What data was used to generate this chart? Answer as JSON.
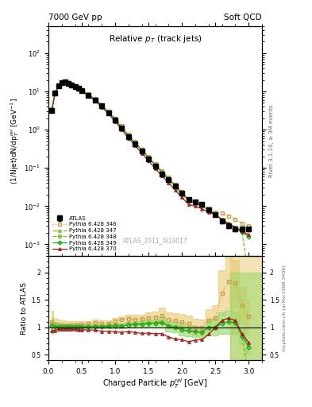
{
  "title_left": "7000 GeV pp",
  "title_right": "Soft QCD",
  "plot_title": "Relative $p_T$ (track jets)",
  "xlabel": "Charged Particle $p_T^{rel}$ [GeV]",
  "ylabel_main": "(1/Njet)dN/dp$_T^{rel}$ [GeV$^{-1}$]",
  "ylabel_ratio": "Ratio to ATLAS",
  "right_label_main": "Rivet 3.1.10, ≥ 3M events",
  "right_label_ratio": "mcplots.cern.ch [arXiv:1306.3436]",
  "watermark": "ATLAS_2011_I919017",
  "atlas_x": [
    0.05,
    0.1,
    0.15,
    0.2,
    0.25,
    0.3,
    0.35,
    0.4,
    0.45,
    0.5,
    0.6,
    0.7,
    0.8,
    0.9,
    1.0,
    1.1,
    1.2,
    1.3,
    1.4,
    1.5,
    1.6,
    1.7,
    1.8,
    1.9,
    2.0,
    2.1,
    2.2,
    2.3,
    2.4,
    2.5,
    2.6,
    2.7,
    2.8,
    2.9,
    3.0
  ],
  "atlas_y": [
    3.2,
    9.0,
    14.0,
    17.0,
    17.5,
    16.5,
    15.0,
    13.5,
    12.0,
    10.5,
    8.0,
    6.0,
    4.2,
    2.8,
    1.8,
    1.1,
    0.65,
    0.42,
    0.27,
    0.17,
    0.11,
    0.07,
    0.05,
    0.033,
    0.022,
    0.015,
    0.013,
    0.011,
    0.008,
    0.006,
    0.004,
    0.003,
    0.0025,
    0.0025,
    0.0025
  ],
  "atlas_yerr": [
    0.3,
    0.5,
    0.7,
    0.8,
    0.8,
    0.7,
    0.6,
    0.5,
    0.4,
    0.3,
    0.2,
    0.15,
    0.1,
    0.07,
    0.05,
    0.03,
    0.02,
    0.015,
    0.01,
    0.007,
    0.005,
    0.004,
    0.003,
    0.002,
    0.0015,
    0.001,
    0.001,
    0.0008,
    0.0007,
    0.0006,
    0.0005,
    0.0004,
    0.0003,
    0.0003,
    0.0003
  ],
  "p346_x": [
    0.05,
    0.1,
    0.15,
    0.2,
    0.25,
    0.3,
    0.35,
    0.4,
    0.45,
    0.5,
    0.6,
    0.7,
    0.8,
    0.9,
    1.0,
    1.1,
    1.2,
    1.3,
    1.4,
    1.5,
    1.6,
    1.7,
    1.8,
    1.9,
    2.0,
    2.1,
    2.2,
    2.3,
    2.4,
    2.5,
    2.6,
    2.7,
    2.8,
    2.9,
    3.0
  ],
  "p346_y": [
    3.5,
    9.5,
    14.5,
    17.5,
    18.0,
    17.0,
    15.5,
    14.0,
    12.5,
    11.0,
    8.5,
    6.5,
    4.5,
    3.0,
    2.0,
    1.25,
    0.75,
    0.48,
    0.31,
    0.2,
    0.13,
    0.085,
    0.057,
    0.037,
    0.024,
    0.016,
    0.013,
    0.011,
    0.009,
    0.007,
    0.0065,
    0.0055,
    0.0045,
    0.0035,
    0.003
  ],
  "p346_color": "#c8a050",
  "p346_linestyle": "dotted",
  "p346_marker": "s",
  "p347_x": [
    0.05,
    0.1,
    0.15,
    0.2,
    0.25,
    0.3,
    0.35,
    0.4,
    0.45,
    0.5,
    0.6,
    0.7,
    0.8,
    0.9,
    1.0,
    1.1,
    1.2,
    1.3,
    1.4,
    1.5,
    1.6,
    1.7,
    1.8,
    1.9,
    2.0,
    2.1,
    2.2,
    2.3,
    2.4,
    2.5,
    2.6,
    2.7,
    2.8,
    2.9,
    3.0
  ],
  "p347_y": [
    3.4,
    9.2,
    14.2,
    17.2,
    17.7,
    16.7,
    15.2,
    13.7,
    12.2,
    10.7,
    8.2,
    6.2,
    4.3,
    2.9,
    1.9,
    1.15,
    0.7,
    0.45,
    0.29,
    0.185,
    0.12,
    0.078,
    0.052,
    0.034,
    0.022,
    0.015,
    0.012,
    0.01,
    0.008,
    0.006,
    0.0045,
    0.0035,
    0.0028,
    0.0022,
    0.0017
  ],
  "p347_color": "#90b030",
  "p347_linestyle": "dashdot",
  "p347_marker": "^",
  "p348_x": [
    0.05,
    0.1,
    0.15,
    0.2,
    0.25,
    0.3,
    0.35,
    0.4,
    0.45,
    0.5,
    0.6,
    0.7,
    0.8,
    0.9,
    1.0,
    1.1,
    1.2,
    1.3,
    1.4,
    1.5,
    1.6,
    1.7,
    1.8,
    1.9,
    2.0,
    2.1,
    2.2,
    2.3,
    2.4,
    2.5,
    2.6,
    2.7,
    2.8,
    2.9,
    3.0
  ],
  "p348_y": [
    3.3,
    9.1,
    14.1,
    17.1,
    17.6,
    16.6,
    15.1,
    13.6,
    12.1,
    10.6,
    8.1,
    6.1,
    4.25,
    2.85,
    1.85,
    1.12,
    0.68,
    0.44,
    0.285,
    0.182,
    0.118,
    0.076,
    0.051,
    0.033,
    0.021,
    0.014,
    0.012,
    0.01,
    0.008,
    0.006,
    0.0043,
    0.0033,
    0.0027,
    0.0021,
    0.00015
  ],
  "p348_color": "#70c030",
  "p348_linestyle": "dashed",
  "p348_marker": "D",
  "p349_x": [
    0.05,
    0.1,
    0.15,
    0.2,
    0.25,
    0.3,
    0.35,
    0.4,
    0.45,
    0.5,
    0.6,
    0.7,
    0.8,
    0.9,
    1.0,
    1.1,
    1.2,
    1.3,
    1.4,
    1.5,
    1.6,
    1.7,
    1.8,
    1.9,
    2.0,
    2.1,
    2.2,
    2.3,
    2.4,
    2.5,
    2.6,
    2.7,
    2.8,
    2.9,
    3.0
  ],
  "p349_y": [
    3.3,
    9.1,
    14.1,
    17.1,
    17.6,
    16.6,
    15.1,
    13.6,
    12.1,
    10.6,
    8.1,
    6.1,
    4.25,
    2.85,
    1.85,
    1.12,
    0.68,
    0.44,
    0.285,
    0.182,
    0.118,
    0.076,
    0.051,
    0.033,
    0.021,
    0.014,
    0.012,
    0.01,
    0.008,
    0.006,
    0.0043,
    0.0033,
    0.0027,
    0.0021,
    0.0016
  ],
  "p349_color": "#20a820",
  "p349_linestyle": "solid",
  "p349_marker": "D",
  "p370_x": [
    0.05,
    0.1,
    0.15,
    0.2,
    0.25,
    0.3,
    0.35,
    0.4,
    0.45,
    0.5,
    0.6,
    0.7,
    0.8,
    0.9,
    1.0,
    1.1,
    1.2,
    1.3,
    1.4,
    1.5,
    1.6,
    1.7,
    1.8,
    1.9,
    2.0,
    2.1,
    2.2,
    2.3,
    2.4,
    2.5,
    2.6,
    2.7,
    2.8,
    2.9,
    3.0
  ],
  "p370_y": [
    3.0,
    8.5,
    13.5,
    16.5,
    17.0,
    16.0,
    14.5,
    13.0,
    11.5,
    10.0,
    7.6,
    5.7,
    3.9,
    2.6,
    1.65,
    1.0,
    0.6,
    0.38,
    0.24,
    0.152,
    0.097,
    0.062,
    0.041,
    0.026,
    0.017,
    0.011,
    0.01,
    0.0085,
    0.007,
    0.006,
    0.0045,
    0.0035,
    0.0028,
    0.0022,
    0.0018
  ],
  "p370_color": "#a02020",
  "p370_linestyle": "solid",
  "p370_marker": "^",
  "xlim": [
    0.0,
    3.2
  ],
  "ylim_main": [
    0.0005,
    500
  ],
  "ylim_ratio": [
    0.4,
    2.3
  ],
  "band_yellow_color": "#e8c870",
  "band_green_color": "#90d860",
  "band_alpha": 0.6
}
